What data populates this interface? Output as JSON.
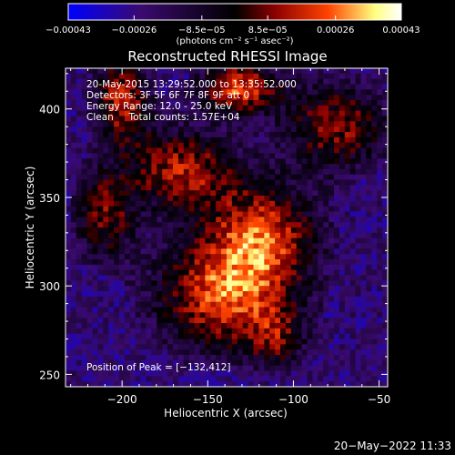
{
  "chart_data": {
    "type": "heatmap",
    "title": "Reconstructed RHESSI Image",
    "xlabel": "Heliocentric X (arcsec)",
    "ylabel": "Heliocentric Y (arcsec)",
    "xlim": [
      -233,
      -45
    ],
    "ylim": [
      243,
      423
    ],
    "x_ticks": [
      -200,
      -150,
      -100,
      -50
    ],
    "x_tick_labels": [
      "−200",
      "−150",
      "−100",
      "−50"
    ],
    "y_ticks": [
      250,
      300,
      350,
      400
    ],
    "y_tick_labels": [
      "250",
      "300",
      "350",
      "400"
    ],
    "colorbar": {
      "range": [
        -0.00043,
        0.00043
      ],
      "tick_values": [
        -0.00043,
        -0.00026,
        -8.5e-05,
        8.5e-05,
        0.00026,
        0.00043
      ],
      "tick_labels": [
        "−0.00043",
        "−0.00026",
        "−8.5e−05",
        "8.5e−05",
        "0.00026",
        "0.00043"
      ],
      "units_label": "(photons cm⁻² s⁻¹ asec⁻²)",
      "colors": [
        "#0000ff",
        "#3a0a6e",
        "#000000",
        "#8b0000",
        "#ff4400",
        "#ffff80",
        "#ffffff"
      ]
    },
    "annotations": [
      "20-May-2015 13:29:52.000 to 13:35:52.000",
      "Detectors: 3F 5F 6F 7F 8F 9F att 0",
      "Energy Range: 12.0 - 25.0 keV",
      "Clean     Total counts: 1.57E+04"
    ],
    "peak_label": "Position of Peak = [−132,412]",
    "emission_structure": [
      {
        "x": -140,
        "y": 295,
        "sx": 28,
        "sy": 22,
        "amp": 1.0
      },
      {
        "x": -118,
        "y": 330,
        "sx": 22,
        "sy": 20,
        "amp": 0.9
      },
      {
        "x": -165,
        "y": 365,
        "sx": 22,
        "sy": 16,
        "amp": 0.85
      },
      {
        "x": -132,
        "y": 412,
        "sx": 16,
        "sy": 10,
        "amp": 1.0
      },
      {
        "x": -200,
        "y": 405,
        "sx": 12,
        "sy": 18,
        "amp": 0.85
      },
      {
        "x": -75,
        "y": 390,
        "sx": 22,
        "sy": 18,
        "amp": 0.75
      },
      {
        "x": -210,
        "y": 340,
        "sx": 12,
        "sy": 18,
        "amp": 0.7
      },
      {
        "x": -110,
        "y": 270,
        "sx": 12,
        "sy": 12,
        "amp": 0.5
      }
    ]
  },
  "footer_date": "20−May−2022 11:33"
}
